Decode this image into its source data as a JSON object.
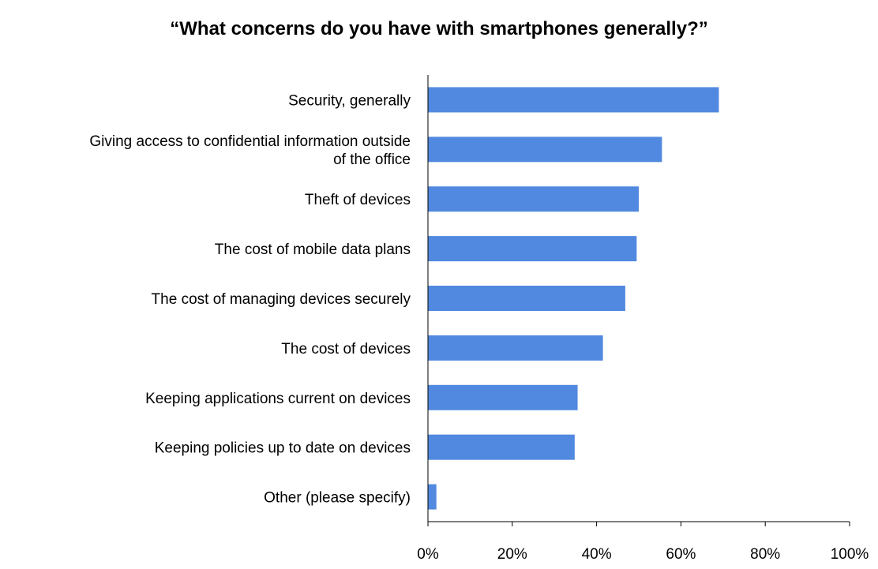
{
  "chart_data": {
    "type": "bar",
    "orientation": "horizontal",
    "title": "“What concerns do you have with smartphones generally?”",
    "categories": [
      [
        "Security, generally"
      ],
      [
        "Giving access to confidential information outside",
        "of the office"
      ],
      [
        "Theft of devices"
      ],
      [
        "The cost of mobile data plans"
      ],
      [
        "The cost of managing devices securely"
      ],
      [
        "The cost of devices"
      ],
      [
        "Keeping applications current on devices"
      ],
      [
        "Keeping policies up to date on devices"
      ],
      [
        "Other (please specify)"
      ]
    ],
    "values": [
      0.69,
      0.555,
      0.5,
      0.495,
      0.468,
      0.415,
      0.355,
      0.348,
      0.02
    ],
    "xlim": [
      0,
      1
    ],
    "xticks": [
      "0%",
      "20%",
      "40%",
      "60%",
      "80%",
      "100%"
    ],
    "xlabel": "",
    "ylabel": "",
    "grid": false,
    "legend": "none",
    "bar_color": "#5189E0",
    "axis_color": "#000000"
  }
}
